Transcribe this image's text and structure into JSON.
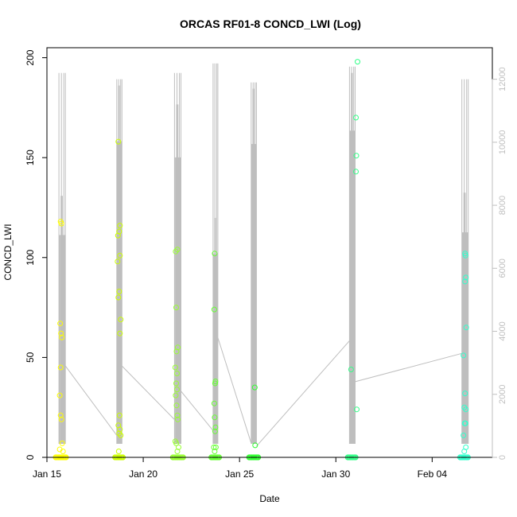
{
  "chart_data": {
    "type": "scatter",
    "title": "ORCAS RF01-8 CONCD_LWI (Log)",
    "xlabel": "Date",
    "ylabel": "CONCD_LWI",
    "xlim": [
      "2016-01-15T00:00",
      "2016-02-07T03:00"
    ],
    "ylim": [
      0,
      205
    ],
    "y2lim": [
      0,
      13000
    ],
    "grid": false,
    "legend": "none",
    "x_ticks": [
      {
        "label": "Jan 15",
        "date": "2016-01-15"
      },
      {
        "label": "Jan 20",
        "date": "2016-01-20"
      },
      {
        "label": "Jan 25",
        "date": "2016-01-25"
      },
      {
        "label": "Jan 30",
        "date": "2016-01-30"
      },
      {
        "label": "Feb 04",
        "date": "2016-02-04"
      }
    ],
    "y_ticks": [
      0,
      50,
      100,
      150,
      200
    ],
    "y2_ticks": [
      0,
      2000,
      4000,
      6000,
      8000,
      10000,
      12000
    ],
    "secondary_series": {
      "color": "#bebebe",
      "flights": [
        {
          "start": "2016-01-15T15:00",
          "end": "2016-01-15T23:00",
          "peak": 12200,
          "core": 8300
        },
        {
          "start": "2016-01-18T15:00",
          "end": "2016-01-18T21:30",
          "peak": 12000,
          "core": 11800
        },
        {
          "start": "2016-01-21T15:00",
          "end": "2016-01-21T23:00",
          "peak": 12200,
          "core": 11200
        },
        {
          "start": "2016-01-23T15:00",
          "end": "2016-01-23T21:00",
          "peak": 12500,
          "core": 7600
        },
        {
          "start": "2016-01-25T14:30",
          "end": "2016-01-25T21:00",
          "peak": 11900,
          "core": 11700
        },
        {
          "start": "2016-01-30T17:00",
          "end": "2016-01-31T00:00",
          "peak": 12400,
          "core": 12200
        },
        {
          "start": "2016-02-05T13:00",
          "end": "2016-02-05T21:00",
          "peak": 12000,
          "core": 8400
        }
      ],
      "connectors": [
        {
          "date": "2016-01-15T23:00",
          "value": 2900
        },
        {
          "date": "2016-01-18T15:00",
          "value": 700
        },
        {
          "date": "2016-01-18T21:30",
          "value": 2900
        },
        {
          "date": "2016-01-21T15:00",
          "value": 1200
        },
        {
          "date": "2016-01-21T23:00",
          "value": 2100
        },
        {
          "date": "2016-01-23T15:00",
          "value": 850
        },
        {
          "date": "2016-01-23T21:00",
          "value": 3800
        },
        {
          "date": "2016-01-25T14:30",
          "value": 450
        },
        {
          "date": "2016-01-25T21:00",
          "value": 350
        },
        {
          "date": "2016-01-30T17:00",
          "value": 3700
        },
        {
          "date": "2016-01-31T00:00",
          "value": 2400
        },
        {
          "date": "2016-02-05T13:00",
          "value": 3300
        }
      ]
    },
    "series": [
      {
        "color": "#ffff00",
        "points": [
          {
            "x": "2016-01-15T17:00",
            "y": 118
          },
          {
            "x": "2016-01-15T18:00",
            "y": 117
          },
          {
            "x": "2016-01-15T16:30",
            "y": 67
          },
          {
            "x": "2016-01-15T17:30",
            "y": 62
          },
          {
            "x": "2016-01-15T18:30",
            "y": 60
          },
          {
            "x": "2016-01-15T17:00",
            "y": 45
          },
          {
            "x": "2016-01-15T16:00",
            "y": 31
          },
          {
            "x": "2016-01-15T17:00",
            "y": 21
          },
          {
            "x": "2016-01-15T18:00",
            "y": 19
          },
          {
            "x": "2016-01-15T19:00",
            "y": 7
          },
          {
            "x": "2016-01-15T16:00",
            "y": 4
          },
          {
            "x": "2016-01-15T20:00",
            "y": 3
          }
        ]
      },
      {
        "color": "#ccff00",
        "points": [
          {
            "x": "2016-01-18T17:00",
            "y": 158
          },
          {
            "x": "2016-01-18T19:00",
            "y": 116
          },
          {
            "x": "2016-01-18T18:00",
            "y": 113
          },
          {
            "x": "2016-01-18T16:30",
            "y": 111
          },
          {
            "x": "2016-01-18T19:00",
            "y": 101
          },
          {
            "x": "2016-01-18T16:00",
            "y": 98
          },
          {
            "x": "2016-01-18T18:00",
            "y": 83
          },
          {
            "x": "2016-01-18T17:00",
            "y": 80
          },
          {
            "x": "2016-01-18T20:00",
            "y": 69
          },
          {
            "x": "2016-01-18T19:00",
            "y": 62
          },
          {
            "x": "2016-01-18T18:30",
            "y": 21
          },
          {
            "x": "2016-01-18T17:00",
            "y": 16
          },
          {
            "x": "2016-01-18T19:00",
            "y": 14
          },
          {
            "x": "2016-01-18T18:00",
            "y": 12
          },
          {
            "x": "2016-01-18T20:00",
            "y": 11
          },
          {
            "x": "2016-01-18T17:30",
            "y": 3
          }
        ]
      },
      {
        "color": "#99ff33",
        "points": [
          {
            "x": "2016-01-21T16:30",
            "y": 103
          },
          {
            "x": "2016-01-21T18:30",
            "y": 104
          },
          {
            "x": "2016-01-21T17:00",
            "y": 75
          },
          {
            "x": "2016-01-21T19:00",
            "y": 55
          },
          {
            "x": "2016-01-21T17:30",
            "y": 53
          },
          {
            "x": "2016-01-21T16:00",
            "y": 45
          },
          {
            "x": "2016-01-21T18:00",
            "y": 42
          },
          {
            "x": "2016-01-21T17:00",
            "y": 37
          },
          {
            "x": "2016-01-21T18:00",
            "y": 34
          },
          {
            "x": "2016-01-21T16:30",
            "y": 31
          },
          {
            "x": "2016-01-21T17:30",
            "y": 26
          },
          {
            "x": "2016-01-21T18:30",
            "y": 21
          },
          {
            "x": "2016-01-21T19:00",
            "y": 19
          },
          {
            "x": "2016-01-21T16:00",
            "y": 8
          },
          {
            "x": "2016-01-21T17:00",
            "y": 7
          },
          {
            "x": "2016-01-21T20:00",
            "y": 5
          },
          {
            "x": "2016-01-21T18:30",
            "y": 3
          }
        ]
      },
      {
        "color": "#66ff33",
        "points": [
          {
            "x": "2016-01-23T17:00",
            "y": 102
          },
          {
            "x": "2016-01-23T16:30",
            "y": 74
          },
          {
            "x": "2016-01-23T18:00",
            "y": 38
          },
          {
            "x": "2016-01-23T17:30",
            "y": 37
          },
          {
            "x": "2016-01-23T16:30",
            "y": 27
          },
          {
            "x": "2016-01-23T17:00",
            "y": 20
          },
          {
            "x": "2016-01-23T18:00",
            "y": 15
          },
          {
            "x": "2016-01-23T17:30",
            "y": 13
          },
          {
            "x": "2016-01-23T16:00",
            "y": 5
          },
          {
            "x": "2016-01-23T18:30",
            "y": 5
          },
          {
            "x": "2016-01-23T17:00",
            "y": 3
          }
        ]
      },
      {
        "color": "#33ff33",
        "points": [
          {
            "x": "2016-01-25T19:00",
            "y": 35
          },
          {
            "x": "2016-01-25T19:30",
            "y": 6
          }
        ]
      },
      {
        "color": "#33ff88",
        "points": [
          {
            "x": "2016-01-31T03:00",
            "y": 198
          },
          {
            "x": "2016-01-31T01:00",
            "y": 170
          },
          {
            "x": "2016-01-31T01:30",
            "y": 151
          },
          {
            "x": "2016-01-31T01:00",
            "y": 143
          },
          {
            "x": "2016-01-30T19:00",
            "y": 44
          },
          {
            "x": "2016-01-31T02:00",
            "y": 24
          }
        ]
      },
      {
        "color": "#33ffcc",
        "points": [
          {
            "x": "2016-02-05T17:00",
            "y": 102
          },
          {
            "x": "2016-02-05T17:30",
            "y": 101
          },
          {
            "x": "2016-02-05T18:00",
            "y": 90
          },
          {
            "x": "2016-02-05T17:00",
            "y": 88
          },
          {
            "x": "2016-02-05T18:30",
            "y": 65
          },
          {
            "x": "2016-02-05T15:00",
            "y": 51
          },
          {
            "x": "2016-02-05T17:00",
            "y": 32
          },
          {
            "x": "2016-02-05T16:00",
            "y": 25
          },
          {
            "x": "2016-02-05T18:00",
            "y": 24
          },
          {
            "x": "2016-02-05T16:30",
            "y": 17
          },
          {
            "x": "2016-02-05T17:30",
            "y": 17
          },
          {
            "x": "2016-02-05T15:00",
            "y": 11
          },
          {
            "x": "2016-02-05T18:00",
            "y": 5
          },
          {
            "x": "2016-02-05T16:00",
            "y": 3
          }
        ]
      }
    ],
    "zero_clusters": [
      {
        "start": "2016-01-15T11:00",
        "end": "2016-01-16T00:00",
        "color": "#ffff00"
      },
      {
        "start": "2016-01-18T13:00",
        "end": "2016-01-19T00:00",
        "color": "#ccff00"
      },
      {
        "start": "2016-01-21T13:00",
        "end": "2016-01-22T03:00",
        "color": "#99ff33"
      },
      {
        "start": "2016-01-23T13:00",
        "end": "2016-01-23T23:00",
        "color": "#66ff33"
      },
      {
        "start": "2016-01-25T12:00",
        "end": "2016-01-26T00:00",
        "color": "#33ff33"
      },
      {
        "start": "2016-01-30T15:00",
        "end": "2016-01-31T02:00",
        "color": "#33ff88"
      },
      {
        "start": "2016-02-05T11:00",
        "end": "2016-02-05T22:00",
        "color": "#33ffcc"
      }
    ]
  }
}
